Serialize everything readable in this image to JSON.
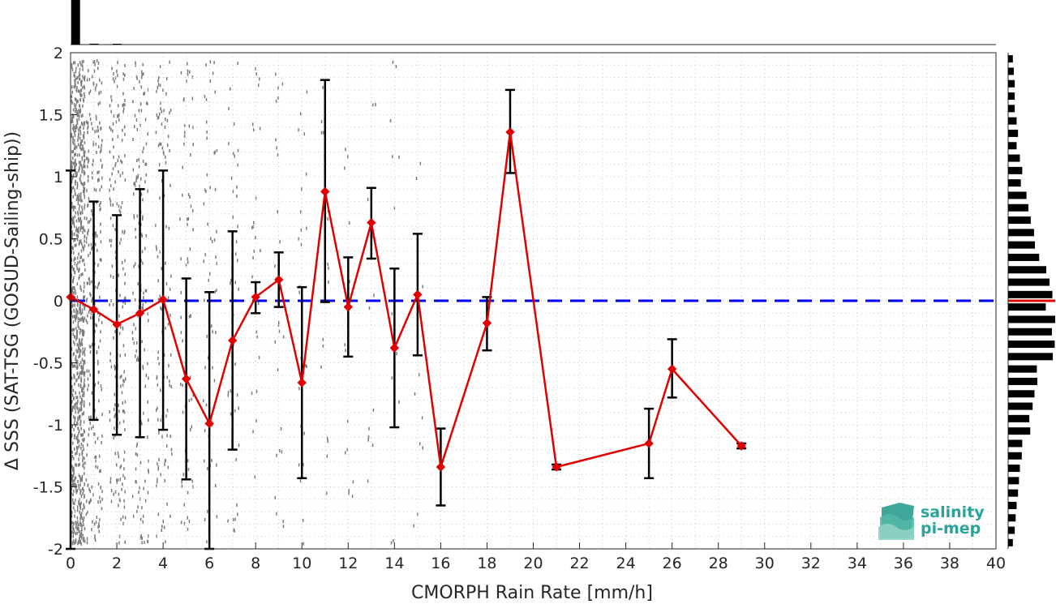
{
  "chart_data": {
    "type": "line",
    "xlabel": "CMORPH Rain Rate [mm/h]",
    "ylabel": "Δ SSS (SAT-TSG (GOSUD-Sailing-ship))",
    "xlim": [
      0,
      40
    ],
    "ylim": [
      -2,
      2
    ],
    "x_ticks": [
      "0",
      "2",
      "4",
      "6",
      "8",
      "10",
      "12",
      "14",
      "16",
      "18",
      "20",
      "22",
      "24",
      "26",
      "28",
      "30",
      "32",
      "34",
      "36",
      "38",
      "40"
    ],
    "y_ticks": [
      "2",
      "1.5",
      "1",
      "0.5",
      "0",
      "-0.5",
      "-1",
      "-1.5",
      "-2"
    ],
    "grid": true,
    "reference_line": {
      "y": 0,
      "style": "dashed",
      "color": "#0000ee"
    },
    "series": [
      {
        "color": "#e00000",
        "marker": "diamond",
        "points": [
          {
            "x": 0,
            "y": 0.03,
            "err_low": -2.0,
            "err_high": 1.05
          },
          {
            "x": 1,
            "y": -0.07,
            "err_low": -0.96,
            "err_high": 0.8
          },
          {
            "x": 2,
            "y": -0.19,
            "err_low": -1.08,
            "err_high": 0.69
          },
          {
            "x": 3,
            "y": -0.1,
            "err_low": -1.1,
            "err_high": 0.9
          },
          {
            "x": 4,
            "y": 0.01,
            "err_low": -1.04,
            "err_high": 1.05
          },
          {
            "x": 5,
            "y": -0.63,
            "err_low": -1.44,
            "err_high": 0.18
          },
          {
            "x": 6,
            "y": -0.99,
            "err_low": -2.0,
            "err_high": 0.07
          },
          {
            "x": 7,
            "y": -0.32,
            "err_low": -1.2,
            "err_high": 0.56
          },
          {
            "x": 8,
            "y": 0.03,
            "err_low": -0.1,
            "err_high": 0.15
          },
          {
            "x": 9,
            "y": 0.17,
            "err_low": -0.05,
            "err_high": 0.39
          },
          {
            "x": 10,
            "y": -0.66,
            "err_low": -1.43,
            "err_high": 0.11
          },
          {
            "x": 11,
            "y": 0.88,
            "err_low": -0.01,
            "err_high": 1.78
          },
          {
            "x": 12,
            "y": -0.05,
            "err_low": -0.45,
            "err_high": 0.35
          },
          {
            "x": 13,
            "y": 0.63,
            "err_low": 0.34,
            "err_high": 0.91
          },
          {
            "x": 14,
            "y": -0.38,
            "err_low": -1.02,
            "err_high": 0.26
          },
          {
            "x": 15,
            "y": 0.05,
            "err_low": -0.44,
            "err_high": 0.54
          },
          {
            "x": 16,
            "y": -1.34,
            "err_low": -1.65,
            "err_high": -1.03
          },
          {
            "x": 18,
            "y": -0.18,
            "err_low": -0.4,
            "err_high": 0.03
          },
          {
            "x": 19,
            "y": 1.36,
            "err_low": 1.03,
            "err_high": 1.7
          },
          {
            "x": 21,
            "y": -1.34,
            "err_low": -1.36,
            "err_high": -1.32
          },
          {
            "x": 25,
            "y": -1.15,
            "err_low": -1.43,
            "err_high": -0.87
          },
          {
            "x": 26,
            "y": -0.55,
            "err_low": -0.78,
            "err_high": -0.31
          },
          {
            "x": 29,
            "y": -1.17,
            "err_low": -1.19,
            "err_high": -1.15
          }
        ]
      }
    ],
    "top_histogram": [
      {
        "x": 0.2,
        "height": 1.0
      },
      {
        "x": 1.0,
        "height": 0.02
      },
      {
        "x": 2.0,
        "height": 0.01
      }
    ],
    "right_histogram": [
      {
        "y": 1.95,
        "width": 0.1
      },
      {
        "y": 1.85,
        "width": 0.12
      },
      {
        "y": 1.75,
        "width": 0.14
      },
      {
        "y": 1.65,
        "width": 0.14
      },
      {
        "y": 1.55,
        "width": 0.14
      },
      {
        "y": 1.45,
        "width": 0.18
      },
      {
        "y": 1.35,
        "width": 0.21
      },
      {
        "y": 1.25,
        "width": 0.18
      },
      {
        "y": 1.15,
        "width": 0.25
      },
      {
        "y": 1.05,
        "width": 0.3
      },
      {
        "y": 0.95,
        "width": 0.27
      },
      {
        "y": 0.85,
        "width": 0.39
      },
      {
        "y": 0.75,
        "width": 0.43
      },
      {
        "y": 0.65,
        "width": 0.48
      },
      {
        "y": 0.55,
        "width": 0.55
      },
      {
        "y": 0.45,
        "width": 0.57
      },
      {
        "y": 0.35,
        "width": 0.66
      },
      {
        "y": 0.25,
        "width": 0.81
      },
      {
        "y": 0.15,
        "width": 0.88
      },
      {
        "y": 0.05,
        "width": 0.94
      },
      {
        "y": -0.05,
        "width": 0.8
      },
      {
        "y": -0.15,
        "width": 1.0
      },
      {
        "y": -0.25,
        "width": 0.93
      },
      {
        "y": -0.35,
        "width": 0.99
      },
      {
        "y": -0.45,
        "width": 0.95
      },
      {
        "y": -0.55,
        "width": 0.61
      },
      {
        "y": -0.65,
        "width": 0.62
      },
      {
        "y": -0.75,
        "width": 0.56
      },
      {
        "y": -0.85,
        "width": 0.52
      },
      {
        "y": -0.95,
        "width": 0.45
      },
      {
        "y": -1.05,
        "width": 0.47
      },
      {
        "y": -1.15,
        "width": 0.3
      },
      {
        "y": -1.25,
        "width": 0.29
      },
      {
        "y": -1.35,
        "width": 0.25
      },
      {
        "y": -1.45,
        "width": 0.23
      },
      {
        "y": -1.55,
        "width": 0.21
      },
      {
        "y": -1.65,
        "width": 0.18
      },
      {
        "y": -1.75,
        "width": 0.16
      },
      {
        "y": -1.85,
        "width": 0.14
      },
      {
        "y": -1.95,
        "width": 0.1
      }
    ],
    "median_line_color": "#e00000"
  },
  "logo": {
    "line1": "salinity",
    "line2": "pi-mep",
    "color": "#2aa39a"
  }
}
